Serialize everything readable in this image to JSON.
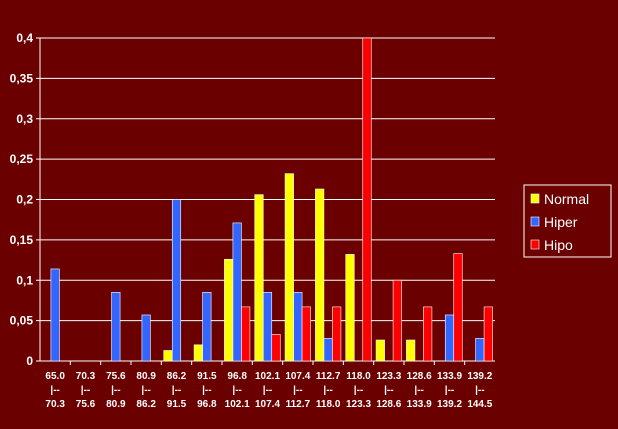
{
  "chart_data": {
    "type": "bar",
    "categories": [
      [
        "65.0",
        "|--",
        "70.3"
      ],
      [
        "70.3",
        "|--",
        "75.6"
      ],
      [
        "75.6",
        "|--",
        "80.9"
      ],
      [
        "80.9",
        "|--",
        "86.2"
      ],
      [
        "86.2",
        "|--",
        "91.5"
      ],
      [
        "91.5",
        "|--",
        "96.8"
      ],
      [
        "96.8",
        "|--",
        "102.1"
      ],
      [
        "102.1",
        "|--",
        "107.4"
      ],
      [
        "107.4",
        "|--",
        "112.7"
      ],
      [
        "112.7",
        "|--",
        "118.0"
      ],
      [
        "118.0",
        "|--",
        "123.3"
      ],
      [
        "123.3",
        "|--",
        "128.6"
      ],
      [
        "128.6",
        "|--",
        "133.9"
      ],
      [
        "133.9",
        "|--",
        "139.2"
      ],
      [
        "139.2",
        "|--",
        "144.5"
      ]
    ],
    "series": [
      {
        "name": "Normal",
        "color": "#ffff00",
        "values": [
          0,
          0,
          0,
          0,
          0.013,
          0.02,
          0.126,
          0.206,
          0.232,
          0.213,
          0.132,
          0.026,
          0.026,
          0,
          0
        ]
      },
      {
        "name": "Hiper",
        "color": "#3366ff",
        "values": [
          0.114,
          0,
          0.085,
          0.057,
          0.2,
          0.085,
          0.171,
          0.085,
          0.085,
          0.028,
          0,
          0,
          0,
          0.057,
          0.028
        ]
      },
      {
        "name": "Hipo",
        "color": "#ff0000",
        "values": [
          0,
          0,
          0,
          0,
          0,
          0,
          0.067,
          0.033,
          0.067,
          0.067,
          0.4,
          0.1,
          0.067,
          0.133,
          0.067
        ]
      }
    ],
    "yticks": [
      "0",
      "0,05",
      "0,1",
      "0,15",
      "0,2",
      "0,25",
      "0,3",
      "0,35",
      "0,4"
    ],
    "ylim": [
      0,
      0.4
    ],
    "grid": true,
    "legend": "right",
    "colors": {
      "background": "#6b0000",
      "gridline": "#ffffff",
      "axis": "#ffffff"
    }
  }
}
